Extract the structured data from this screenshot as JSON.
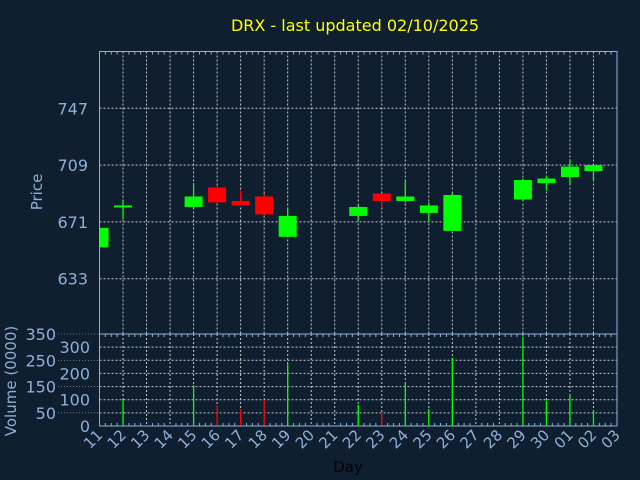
{
  "chart_data": [
    {
      "type": "candlestick",
      "title": "DRX - last updated 02/10/2025",
      "ylabel": "Price",
      "ylim": [
        596,
        785
      ],
      "yticks": [
        633,
        671,
        709,
        747
      ],
      "grid": true,
      "categories": [
        "11",
        "12",
        "13",
        "14",
        "15",
        "16",
        "17",
        "18",
        "19",
        "20",
        "21",
        "22",
        "23",
        "24",
        "25",
        "26",
        "27",
        "28",
        "29",
        "30",
        "01",
        "02",
        "03"
      ],
      "candles": [
        {
          "day": "11",
          "open": 654,
          "high": 668,
          "low": 653,
          "close": 667
        },
        {
          "day": "12",
          "open": 681,
          "high": 686,
          "low": 673,
          "close": 682
        },
        {
          "day": "15",
          "open": 681,
          "high": 697,
          "low": 680,
          "close": 688
        },
        {
          "day": "16",
          "open": 694,
          "high": 695,
          "low": 684,
          "close": 684
        },
        {
          "day": "17",
          "open": 685,
          "high": 692,
          "low": 682,
          "close": 682
        },
        {
          "day": "18",
          "open": 688,
          "high": 690,
          "low": 675,
          "close": 676
        },
        {
          "day": "19",
          "open": 661,
          "high": 680,
          "low": 661,
          "close": 675
        },
        {
          "day": "22",
          "open": 675,
          "high": 682,
          "low": 672,
          "close": 681
        },
        {
          "day": "23",
          "open": 690,
          "high": 690,
          "low": 681,
          "close": 685
        },
        {
          "day": "24",
          "open": 685,
          "high": 698,
          "low": 684,
          "close": 688
        },
        {
          "day": "25",
          "open": 677,
          "high": 684,
          "low": 671,
          "close": 682
        },
        {
          "day": "26",
          "open": 665,
          "high": 690,
          "low": 665,
          "close": 689
        },
        {
          "day": "29",
          "open": 686,
          "high": 700,
          "low": 685,
          "close": 699
        },
        {
          "day": "30",
          "open": 697,
          "high": 702,
          "low": 692,
          "close": 700
        },
        {
          "day": "01",
          "open": 701,
          "high": 713,
          "low": 696,
          "close": 708
        },
        {
          "day": "02",
          "open": 705,
          "high": 709,
          "low": 699,
          "close": 709
        }
      ]
    },
    {
      "type": "bar",
      "ylabel": "Volume (0000)",
      "xlabel": "Day",
      "ylim": [
        0,
        350
      ],
      "yticks": [
        0,
        50,
        100,
        150,
        200,
        250,
        300,
        350
      ],
      "grid": true,
      "bars": [
        {
          "day": "12",
          "value": 98,
          "dir": "up"
        },
        {
          "day": "15",
          "value": 155,
          "dir": "up"
        },
        {
          "day": "16",
          "value": 78,
          "dir": "down"
        },
        {
          "day": "17",
          "value": 65,
          "dir": "down"
        },
        {
          "day": "18",
          "value": 100,
          "dir": "down"
        },
        {
          "day": "19",
          "value": 235,
          "dir": "up"
        },
        {
          "day": "22",
          "value": 80,
          "dir": "up"
        },
        {
          "day": "23",
          "value": 50,
          "dir": "down"
        },
        {
          "day": "24",
          "value": 160,
          "dir": "up"
        },
        {
          "day": "25",
          "value": 65,
          "dir": "up"
        },
        {
          "day": "26",
          "value": 260,
          "dir": "up"
        },
        {
          "day": "29",
          "value": 340,
          "dir": "up"
        },
        {
          "day": "30",
          "value": 97,
          "dir": "up"
        },
        {
          "day": "01",
          "value": 117,
          "dir": "up"
        },
        {
          "day": "02",
          "value": 60,
          "dir": "up"
        }
      ]
    }
  ],
  "colors": {
    "background": "#0f1f30",
    "title": "#ffff00",
    "axis": "#8fb0d8",
    "up": "#00ff00",
    "down": "#ff0000",
    "grid": "#c8c8c8",
    "xlabel": "#000000"
  }
}
